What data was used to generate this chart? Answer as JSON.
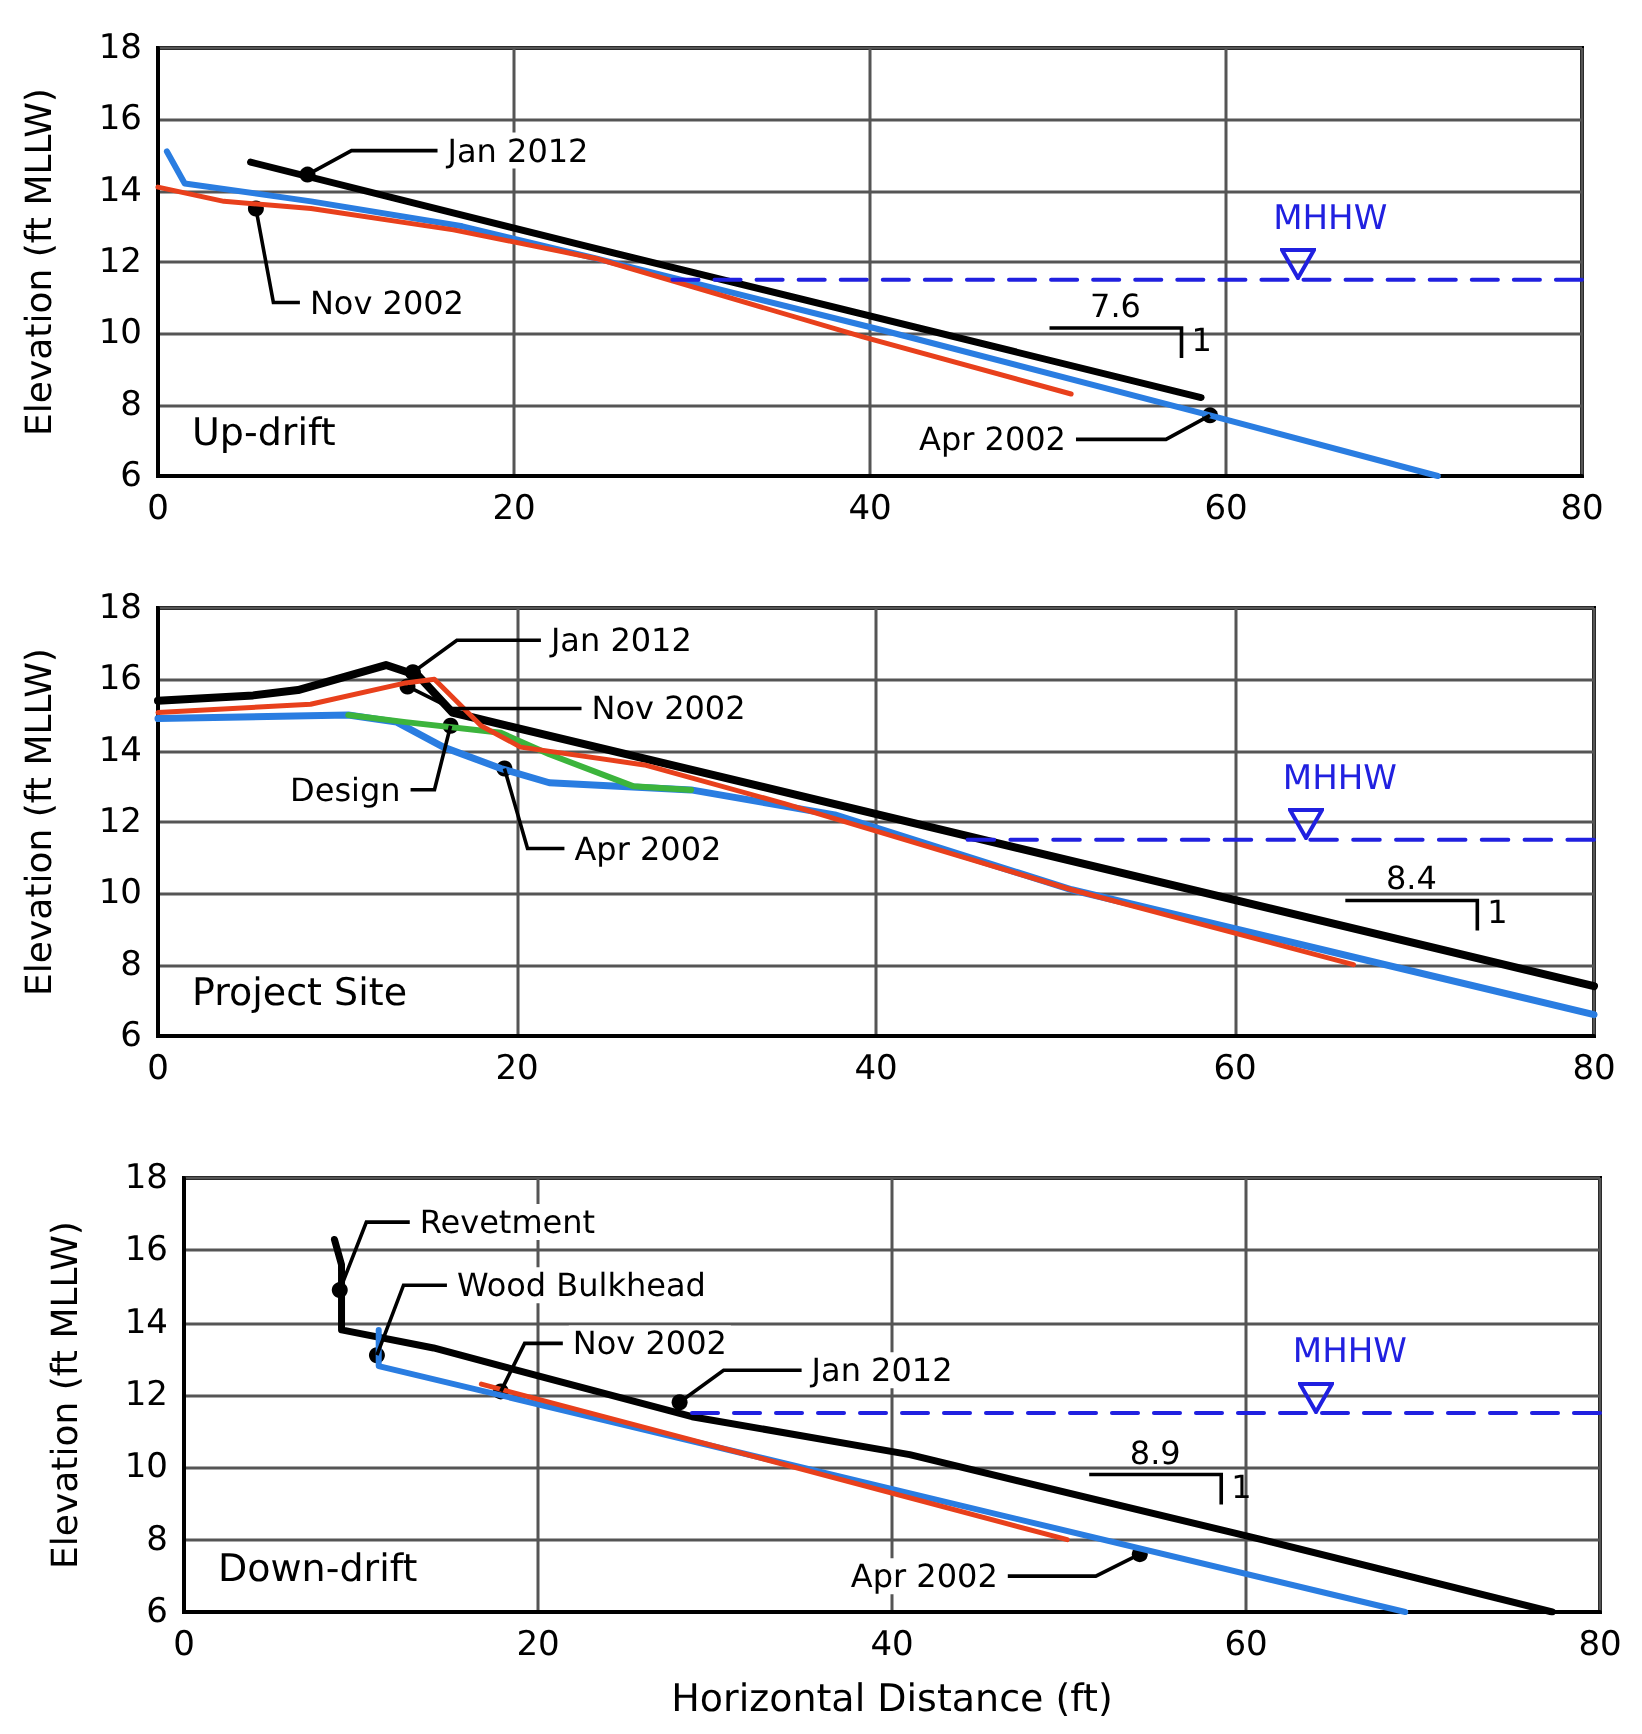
{
  "chart_data": [
    {
      "type": "line",
      "title": "Up-drift",
      "ylabel": "Elevation (ft MLLW)",
      "xlim": [
        0,
        80
      ],
      "xticks": [
        0,
        20,
        40,
        60,
        80
      ],
      "ylim": [
        6,
        18
      ],
      "yticks": [
        6,
        8,
        10,
        12,
        14,
        16,
        18
      ],
      "grid": true,
      "marker": "none",
      "tick_labels": "xy",
      "series": [
        {
          "color": "#000000",
          "x": [
            5.2,
            24,
            58.6
          ],
          "values": [
            14.8,
            12.45,
            8.2
          ]
        },
        {
          "color": "#2a7de1",
          "x": [
            0.5,
            1.5,
            8.6,
            17.1,
            24.6,
            40.6,
            59.1,
            71.9
          ],
          "values": [
            15.1,
            14.2,
            13.7,
            13.0,
            12.1,
            10.1,
            7.7,
            6.0
          ]
        },
        {
          "color": "#e8401c",
          "x": [
            0,
            3.7,
            8.6,
            16.6,
            24.6,
            39.6,
            51.3
          ],
          "values": [
            14.1,
            13.7,
            13.5,
            12.9,
            12.1,
            9.9,
            8.3
          ]
        },
        {
          "name": "MHHW",
          "color": "#2020e0",
          "line_style": "dashed",
          "x": [
            28.9,
            80
          ],
          "values": [
            11.5,
            11.5
          ]
        }
      ],
      "annotations": [
        {
          "text": "Jan 2012",
          "x": 8.4,
          "y": 14.45
        },
        {
          "text": "Nov 2002",
          "x": 5.5,
          "y": 13.5
        },
        {
          "text": "Apr 2002",
          "x": 59.1,
          "y": 7.7
        },
        "7.6",
        "1"
      ]
    },
    {
      "type": "line",
      "title": "Project Site",
      "ylabel": "Elevation (ft MLLW)",
      "xlim": [
        0,
        80
      ],
      "xticks": [
        0,
        20,
        40,
        60,
        80
      ],
      "ylim": [
        6,
        18
      ],
      "yticks": [
        6,
        8,
        10,
        12,
        14,
        16,
        18
      ],
      "grid": true,
      "marker": "none",
      "series": [
        {
          "color": "#000000",
          "x": [
            0,
            5.3,
            7.8,
            12.7,
            14.5,
            16.4,
            80
          ],
          "values": [
            15.4,
            15.55,
            15.7,
            16.4,
            16.1,
            15.07,
            7.4
          ]
        },
        {
          "color": "#2a7de1",
          "x": [
            0,
            10.6,
            13.3,
            15.9,
            19.1,
            21.8,
            29.7,
            37.7,
            50.9,
            80
          ],
          "values": [
            14.9,
            15.0,
            14.8,
            14.1,
            13.5,
            13.1,
            12.9,
            12.2,
            10.1,
            6.6
          ]
        },
        {
          "color": "#3cb43c",
          "x": [
            10.6,
            13.8,
            19.1,
            21.8,
            26.5,
            29.7
          ],
          "values": [
            15.0,
            14.8,
            14.5,
            13.9,
            13.0,
            12.9
          ]
        },
        {
          "color": "#e8401c",
          "x": [
            0,
            8.5,
            13.8,
            15.4,
            16.2,
            18.0,
            20.2,
            27.1,
            35,
            50.9,
            66.6
          ],
          "values": [
            15.07,
            15.3,
            15.9,
            16.0,
            15.6,
            14.7,
            14.1,
            13.6,
            12.5,
            10.1,
            8.0
          ]
        },
        {
          "name": "MHHW",
          "color": "#2020e0",
          "line_style": "dashed",
          "x": [
            45.1,
            80
          ],
          "values": [
            11.5,
            11.5
          ]
        }
      ],
      "annotations": [
        {
          "text": "Jan 2012",
          "x": 14.2,
          "y": 16.2
        },
        {
          "text": "Nov 2002",
          "x": 13.9,
          "y": 15.8
        },
        {
          "text": "Design",
          "x": 16.3,
          "y": 14.7
        },
        {
          "text": "Apr 2002",
          "x": 19.3,
          "y": 13.5
        },
        "8.4",
        "1"
      ]
    },
    {
      "type": "line",
      "title": "Down-drift",
      "xlabel": "Horizontal Distance (ft)",
      "ylabel": "Elevation (ft MLLW)",
      "xlim": [
        0,
        80
      ],
      "xticks": [
        0,
        20,
        40,
        60,
        80
      ],
      "ylim": [
        6,
        18
      ],
      "yticks": [
        6,
        8,
        10,
        12,
        14,
        16,
        18
      ],
      "grid": true,
      "marker": "none",
      "series": [
        {
          "color": "#000000",
          "x": [
            8.5,
            8.9,
            8.9,
            14.1,
            28.7,
            41,
            60.9,
            77.3
          ],
          "values": [
            16.3,
            15.6,
            13.8,
            13.3,
            11.4,
            10.35,
            8.0,
            6.0
          ]
        },
        {
          "color": "#2a7de1",
          "x": [
            11.0,
            11.0,
            69.0
          ],
          "values": [
            13.8,
            12.8,
            6.0
          ]
        },
        {
          "color": "#e8401c",
          "x": [
            16.8,
            49.9
          ],
          "values": [
            12.3,
            8.0
          ]
        },
        {
          "name": "MHHW",
          "color": "#2020e0",
          "line_style": "dashed",
          "x": [
            28.7,
            80
          ],
          "values": [
            11.5,
            11.5
          ]
        }
      ],
      "annotations": [
        {
          "text": "Revetment",
          "x": 8.8,
          "y": 14.9
        },
        {
          "text": "Wood Bulkhead",
          "x": 10.9,
          "y": 13.1
        },
        {
          "text": "Nov 2002",
          "x": 17.9,
          "y": 12.1
        },
        {
          "text": "Jan 2012",
          "x": 28.0,
          "y": 11.8
        },
        {
          "text": "Apr 2002",
          "x": 54.0,
          "y": 7.6
        },
        "8.9",
        "1"
      ]
    }
  ]
}
